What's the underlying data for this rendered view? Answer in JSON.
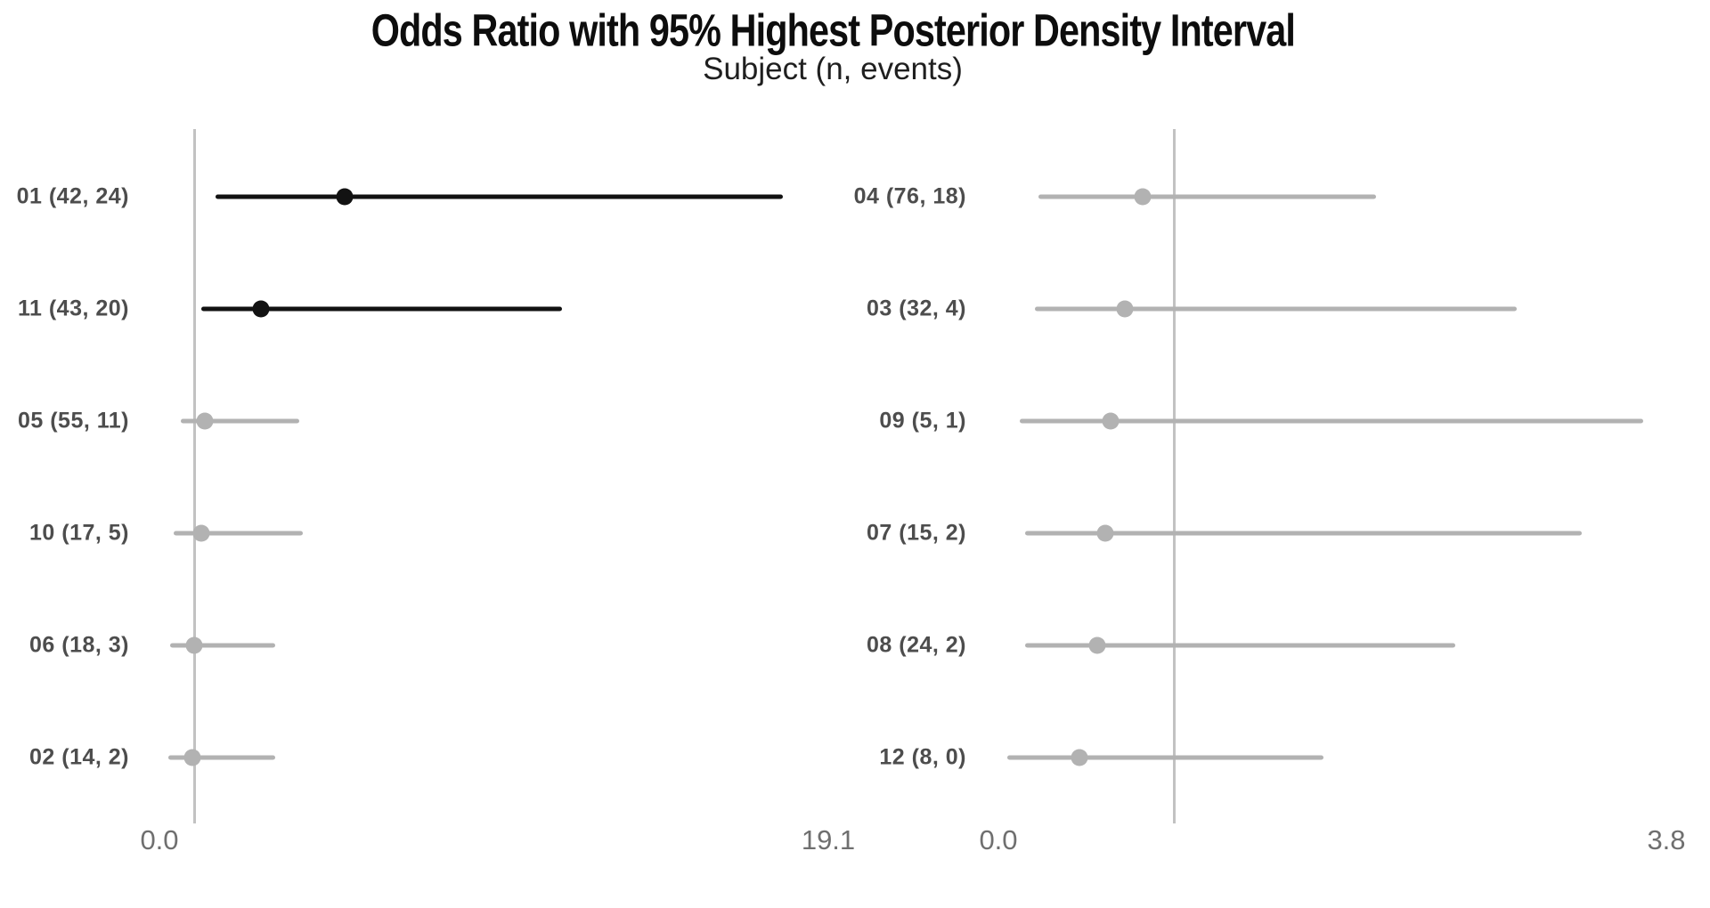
{
  "title": "Odds Ratio with 95% Highest Posterior Density Interval",
  "subtitle": "Subject (n, events)",
  "chart_data": {
    "type": "forest",
    "orientation": "horizontal",
    "reference_line_value": 1.0,
    "grid": "reference-line-only",
    "colors": {
      "significant": "#121212",
      "nonsignificant": "#b2b2b2",
      "reference_line": "#c2c2c2",
      "label_text": "#4d4d4d",
      "axis_text": "#6f6f6f",
      "title_text": "#0d0d0d"
    },
    "panels": [
      {
        "side": "left",
        "axis": {
          "min": 0.0,
          "max": 19.1,
          "tick_labels": [
            "0.0",
            "19.1"
          ]
        },
        "rows": [
          {
            "label": "01 (42, 24)",
            "n": 42,
            "events": 24,
            "or": 5.3,
            "lower": 1.6,
            "upper": 17.8,
            "significant": true
          },
          {
            "label": "11 (43, 20)",
            "n": 43,
            "events": 20,
            "or": 2.9,
            "lower": 1.2,
            "upper": 11.5,
            "significant": true
          },
          {
            "label": "05 (55, 11)",
            "n": 55,
            "events": 11,
            "or": 1.3,
            "lower": 0.6,
            "upper": 4.0,
            "significant": false
          },
          {
            "label": "10 (17, 5)",
            "n": 17,
            "events": 5,
            "or": 1.2,
            "lower": 0.4,
            "upper": 4.1,
            "significant": false
          },
          {
            "label": "06 (18, 3)",
            "n": 18,
            "events": 3,
            "or": 1.0,
            "lower": 0.3,
            "upper": 3.3,
            "significant": false
          },
          {
            "label": "02 (14, 2)",
            "n": 14,
            "events": 2,
            "or": 0.95,
            "lower": 0.25,
            "upper": 3.3,
            "significant": false
          }
        ]
      },
      {
        "side": "right",
        "axis": {
          "min": 0.0,
          "max": 3.8,
          "tick_labels": [
            "0.0",
            "3.8"
          ]
        },
        "rows": [
          {
            "label": "04 (76, 18)",
            "n": 76,
            "events": 18,
            "or": 0.82,
            "lower": 0.23,
            "upper": 2.15,
            "significant": false
          },
          {
            "label": "03 (32, 4)",
            "n": 32,
            "events": 4,
            "or": 0.72,
            "lower": 0.21,
            "upper": 2.95,
            "significant": false
          },
          {
            "label": "09 (5, 1)",
            "n": 5,
            "events": 1,
            "or": 0.64,
            "lower": 0.12,
            "upper": 3.67,
            "significant": false
          },
          {
            "label": "07 (15, 2)",
            "n": 15,
            "events": 2,
            "or": 0.61,
            "lower": 0.15,
            "upper": 3.32,
            "significant": false
          },
          {
            "label": "08 (24, 2)",
            "n": 24,
            "events": 2,
            "or": 0.56,
            "lower": 0.15,
            "upper": 2.6,
            "significant": false
          },
          {
            "label": "12 (8, 0)",
            "n": 8,
            "events": 0,
            "or": 0.46,
            "lower": 0.05,
            "upper": 1.85,
            "significant": false
          }
        ]
      }
    ]
  }
}
